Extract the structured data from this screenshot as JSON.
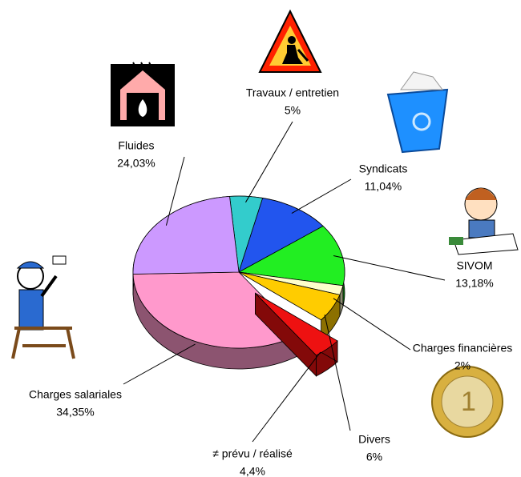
{
  "chart_data": {
    "type": "pie",
    "categories": [
      "Travaux / entretien",
      "Syndicats",
      "SIVOM",
      "Charges financières",
      "Divers",
      "≠ prévu / réalisé",
      "Charges salariales",
      "Fluides"
    ],
    "values": [
      5,
      11.04,
      13.18,
      2,
      6,
      4.4,
      34.35,
      24.03
    ],
    "value_labels": [
      "5%",
      "11,04%",
      "13,18%",
      "2%",
      "6%",
      "4,4%",
      "34,35%",
      "24,03%"
    ],
    "colors": [
      "#33cccc",
      "#2255ee",
      "#22ee22",
      "#ffffcc",
      "#ffcc00",
      "#ee1111",
      "#ff99cc",
      "#cc99ff"
    ],
    "exploded": [
      false,
      false,
      false,
      false,
      false,
      true,
      false,
      false
    ]
  }
}
